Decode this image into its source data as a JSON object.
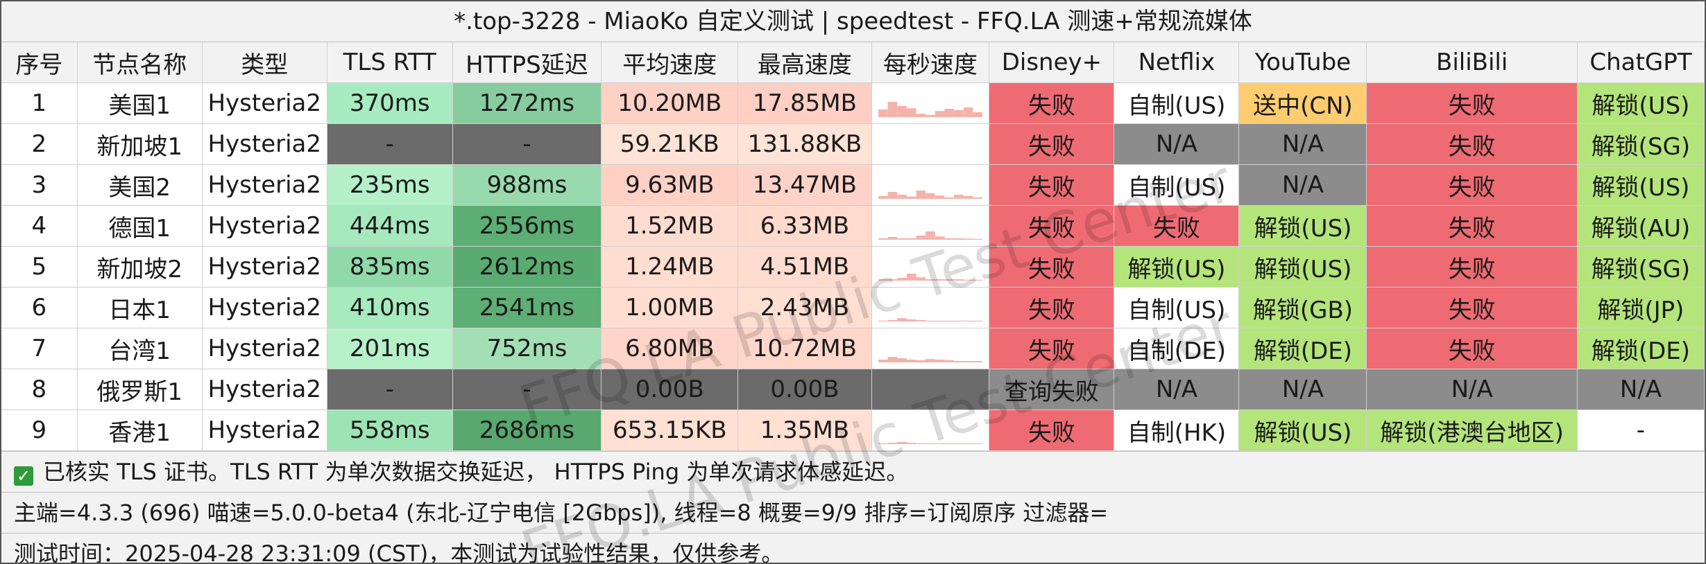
{
  "title": "*.top-3228 - MiaoKo 自定义测试 | speedtest - FFQ.LA 测速+常规流媒体",
  "watermark": "FFQ.LA Public Test Center",
  "headers": [
    "序号",
    "节点名称",
    "类型",
    "TLS RTT",
    "HTTPS延迟",
    "平均速度",
    "最高速度",
    "每秒速度",
    "Disney+",
    "Netflix",
    "YouTube",
    "BiliBili",
    "ChatGPT"
  ],
  "colors": {
    "fail": "#ef6b73",
    "na": "#8c8c8c",
    "unlock": "#b4e57a",
    "pending": "#ffcd70",
    "self": "#ffffff",
    "dash": "#6b6b6b",
    "header_bg": "#f2f2f2",
    "speed_zero": "#6b6b6b"
  },
  "rows": [
    {
      "index": "1",
      "name": "美国1",
      "type": "Hysteria2",
      "tls": "370ms",
      "https": "1272ms",
      "avg": "10.20MB",
      "max": "17.85MB",
      "tls_color": "#a7ebc0",
      "https_color": "#87cc9e",
      "avg_color": "#ffd0c4",
      "max_color": "#ffcfc4",
      "spark": [
        0.28,
        0.55,
        0.4,
        0.32,
        0.12,
        0.08,
        0.22,
        0.3,
        0.25,
        0.35,
        0.18
      ],
      "disney": "失败",
      "netflix": "自制(US)",
      "youtube": "送中(CN)",
      "bili": "失败",
      "chatgpt": "解锁(US)",
      "disney_c": "fail",
      "netflix_c": "self",
      "youtube_c": "pending",
      "bili_c": "fail",
      "chatgpt_c": "unlock"
    },
    {
      "index": "2",
      "name": "新加坡1",
      "type": "Hysteria2",
      "tls": "-",
      "https": "-",
      "avg": "59.21KB",
      "max": "131.88KB",
      "tls_color": "#6b6b6b",
      "https_color": "#6b6b6b",
      "avg_color": "#ffe3d6",
      "max_color": "#ffe3d6",
      "spark": [
        0.0,
        0.0,
        0.0,
        0.0,
        0.0,
        0.0,
        0.0,
        0.0,
        0.0,
        0.0,
        0.0
      ],
      "disney": "失败",
      "netflix": "N/A",
      "youtube": "N/A",
      "bili": "失败",
      "chatgpt": "解锁(SG)",
      "disney_c": "fail",
      "netflix_c": "na",
      "youtube_c": "na",
      "bili_c": "fail",
      "chatgpt_c": "unlock"
    },
    {
      "index": "3",
      "name": "美国2",
      "type": "Hysteria2",
      "tls": "235ms",
      "https": "988ms",
      "avg": "9.63MB",
      "max": "13.47MB",
      "tls_color": "#b4f0c8",
      "https_color": "#99d9ae",
      "avg_color": "#ffd1c5",
      "max_color": "#ffd3c7",
      "spark": [
        0.1,
        0.25,
        0.15,
        0.08,
        0.3,
        0.2,
        0.12,
        0.05,
        0.15,
        0.1,
        0.05
      ],
      "disney": "失败",
      "netflix": "自制(US)",
      "youtube": "N/A",
      "bili": "失败",
      "chatgpt": "解锁(US)",
      "disney_c": "fail",
      "netflix_c": "self",
      "youtube_c": "na",
      "bili_c": "fail",
      "chatgpt_c": "unlock"
    },
    {
      "index": "4",
      "name": "德国1",
      "type": "Hysteria2",
      "tls": "444ms",
      "https": "2556ms",
      "avg": "1.52MB",
      "max": "6.33MB",
      "tls_color": "#a5e9bd",
      "https_color": "#5cae74",
      "avg_color": "#ffdccf",
      "max_color": "#ffdacd",
      "spark": [
        0.05,
        0.1,
        0.05,
        0.05,
        0.15,
        0.3,
        0.12,
        0.05,
        0.05,
        0.04,
        0.03
      ],
      "disney": "失败",
      "netflix": "失败",
      "youtube": "解锁(US)",
      "bili": "失败",
      "chatgpt": "解锁(AU)",
      "disney_c": "fail",
      "netflix_c": "fail",
      "youtube_c": "unlock",
      "bili_c": "fail",
      "chatgpt_c": "unlock"
    },
    {
      "index": "5",
      "name": "新加坡2",
      "type": "Hysteria2",
      "tls": "835ms",
      "https": "2612ms",
      "avg": "1.24MB",
      "max": "4.51MB",
      "tls_color": "#8fdaa8",
      "https_color": "#5aab71",
      "avg_color": "#ffddd0",
      "max_color": "#ffdccf",
      "spark": [
        0.05,
        0.05,
        0.1,
        0.25,
        0.12,
        0.05,
        0.05,
        0.05,
        0.05,
        0.03,
        0.03
      ],
      "disney": "失败",
      "netflix": "解锁(US)",
      "youtube": "解锁(US)",
      "bili": "失败",
      "chatgpt": "解锁(SG)",
      "disney_c": "fail",
      "netflix_c": "unlock",
      "youtube_c": "unlock",
      "bili_c": "fail",
      "chatgpt_c": "unlock"
    },
    {
      "index": "6",
      "name": "日本1",
      "type": "Hysteria2",
      "tls": "410ms",
      "https": "2541ms",
      "avg": "1.00MB",
      "max": "2.43MB",
      "tls_color": "#a6eabe",
      "https_color": "#5daf75",
      "avg_color": "#ffded1",
      "max_color": "#ffdfd2",
      "spark": [
        0.03,
        0.05,
        0.12,
        0.08,
        0.05,
        0.03,
        0.03,
        0.03,
        0.03,
        0.03,
        0.03
      ],
      "disney": "失败",
      "netflix": "自制(US)",
      "youtube": "解锁(GB)",
      "bili": "失败",
      "chatgpt": "解锁(JP)",
      "disney_c": "fail",
      "netflix_c": "self",
      "youtube_c": "unlock",
      "bili_c": "fail",
      "chatgpt_c": "unlock"
    },
    {
      "index": "7",
      "name": "台湾1",
      "type": "Hysteria2",
      "tls": "201ms",
      "https": "752ms",
      "avg": "6.80MB",
      "max": "10.72MB",
      "tls_color": "#b6f1c9",
      "https_color": "#a2dfb5",
      "avg_color": "#ffd5c9",
      "max_color": "#ffd6ca",
      "spark": [
        0.1,
        0.2,
        0.15,
        0.1,
        0.08,
        0.12,
        0.1,
        0.08,
        0.05,
        0.05,
        0.05
      ],
      "disney": "失败",
      "netflix": "自制(DE)",
      "youtube": "解锁(DE)",
      "bili": "失败",
      "chatgpt": "解锁(DE)",
      "disney_c": "fail",
      "netflix_c": "self",
      "youtube_c": "unlock",
      "bili_c": "fail",
      "chatgpt_c": "unlock"
    },
    {
      "index": "8",
      "name": "俄罗斯1",
      "type": "Hysteria2",
      "tls": "-",
      "https": "-",
      "avg": "0.00B",
      "max": "0.00B",
      "tls_color": "#6b6b6b",
      "https_color": "#6b6b6b",
      "avg_color": "#6b6b6b",
      "max_color": "#6b6b6b",
      "spark": [
        0.0,
        0.0,
        0.0,
        0.0,
        0.0,
        0.0,
        0.0,
        0.0,
        0.0,
        0.0,
        0.0
      ],
      "disney": "查询失败",
      "netflix": "N/A",
      "youtube": "N/A",
      "bili": "N/A",
      "chatgpt": "N/A",
      "disney_c": "na",
      "netflix_c": "na",
      "youtube_c": "na",
      "bili_c": "na",
      "chatgpt_c": "na"
    },
    {
      "index": "9",
      "name": "香港1",
      "type": "Hysteria2",
      "tls": "558ms",
      "https": "2686ms",
      "avg": "653.15KB",
      "max": "1.35MB",
      "tls_color": "#9de4b5",
      "https_color": "#58a86f",
      "avg_color": "#ffe0d3",
      "max_color": "#ffe0d3",
      "spark": [
        0.03,
        0.05,
        0.08,
        0.05,
        0.03,
        0.03,
        0.03,
        0.03,
        0.03,
        0.03,
        0.03
      ],
      "disney": "失败",
      "netflix": "自制(HK)",
      "youtube": "解锁(US)",
      "bili": "解锁(港澳台地区)",
      "chatgpt": "-",
      "disney_c": "fail",
      "netflix_c": "self",
      "youtube_c": "unlock",
      "bili_c": "unlock",
      "chatgpt_c": "self"
    }
  ],
  "footer": {
    "tls_note": "已核实 TLS 证书。TLS RTT 为单次数据交换延迟， HTTPS Ping 为单次请求体感延迟。",
    "info": "主端=4.3.3 (696) 喵速=5.0.0-beta4 (东北-辽宁电信 [2Gbps]), 线程=8 概要=9/9 排序=订阅原序 过滤器=",
    "time": "测试时间：2025-04-28 23:31:09 (CST)，本测试为试验性结果，仅供参考。"
  }
}
